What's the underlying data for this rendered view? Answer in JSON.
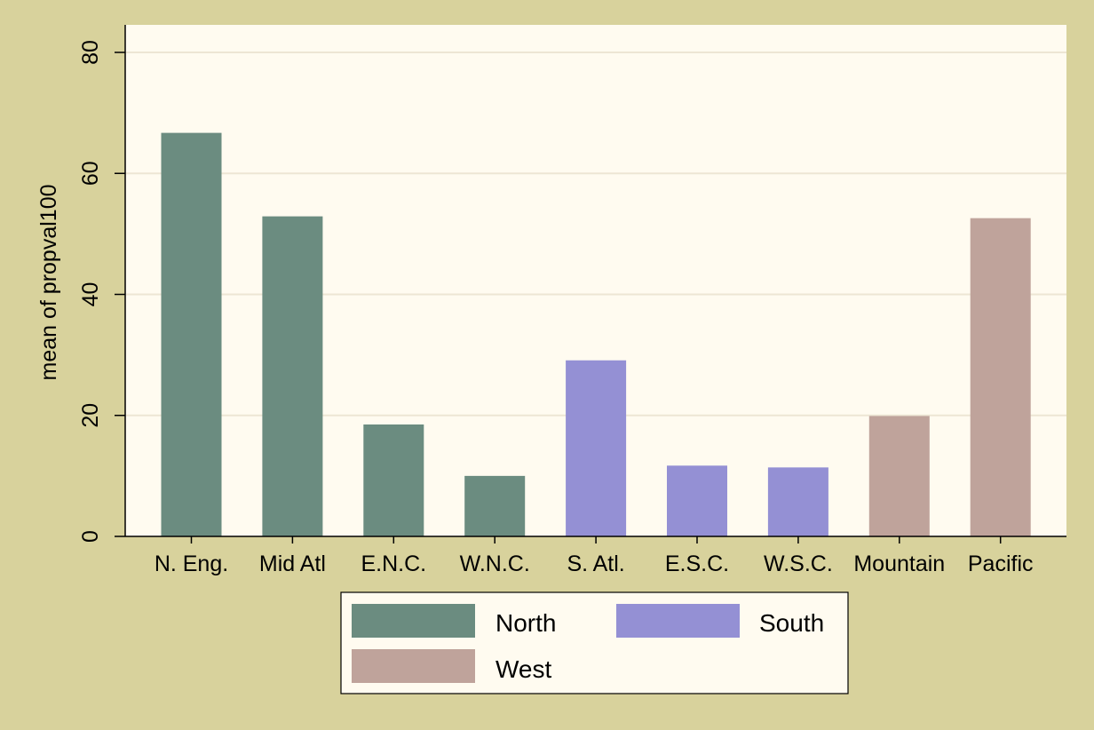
{
  "chart_data": {
    "type": "bar",
    "title": "",
    "xlabel": "",
    "ylabel": "mean of propval100",
    "ylim": [
      0,
      80
    ],
    "yticks": [
      0,
      20,
      40,
      60,
      80
    ],
    "grid": true,
    "legend_position": "bottom",
    "categories": [
      "N. Eng.",
      "Mid Atl",
      "E.N.C.",
      "W.N.C.",
      "S. Atl.",
      "E.S.C.",
      "W.S.C.",
      "Mountain",
      "Pacific"
    ],
    "values": [
      66.7,
      52.9,
      18.5,
      10.0,
      29.1,
      11.7,
      11.4,
      19.9,
      52.6
    ],
    "groups": [
      "North",
      "North",
      "North",
      "North",
      "South",
      "South",
      "South",
      "West",
      "West"
    ],
    "legend": [
      {
        "name": "North",
        "color": "#6b8c80"
      },
      {
        "name": "South",
        "color": "#9490d4"
      },
      {
        "name": "West",
        "color": "#bfa39b"
      }
    ],
    "colors": {
      "background": "#d8d29c",
      "plot_area": "#fffbf0",
      "grid": "#ede6d4"
    }
  }
}
